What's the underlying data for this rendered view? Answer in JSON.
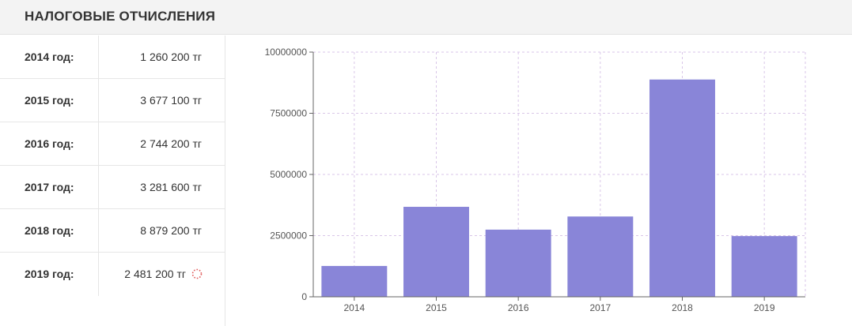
{
  "header": {
    "title": "НАЛОГОВЫЕ ОТЧИСЛЕНИЯ"
  },
  "table": {
    "rows": [
      {
        "year": "2014 год:",
        "amount": "1 260 200 тг"
      },
      {
        "year": "2015 год:",
        "amount": "3 677 100 тг"
      },
      {
        "year": "2016 год:",
        "amount": "2 744 200 тг"
      },
      {
        "year": "2017 год:",
        "amount": "3 281 600 тг"
      },
      {
        "year": "2018 год:",
        "amount": "8 879 200 тг"
      },
      {
        "year": "2019 год:",
        "amount": "2 481 200 тг",
        "icon": "loading-spinner-icon"
      }
    ]
  },
  "chart_data": {
    "type": "bar",
    "categories": [
      "2014",
      "2015",
      "2016",
      "2017",
      "2018",
      "2019"
    ],
    "values": [
      1260200,
      3677100,
      2744200,
      3281600,
      8879200,
      2481200
    ],
    "title": "",
    "xlabel": "",
    "ylabel": "",
    "ylim": [
      0,
      10000000
    ],
    "yticks": [
      0,
      2500000,
      5000000,
      7500000,
      10000000
    ],
    "ytick_labels": [
      "0",
      "2500000",
      "5000000",
      "7500000",
      "10000000"
    ],
    "grid": true,
    "bar_color": "#8985d8",
    "grid_color": "#d9c6e8"
  }
}
